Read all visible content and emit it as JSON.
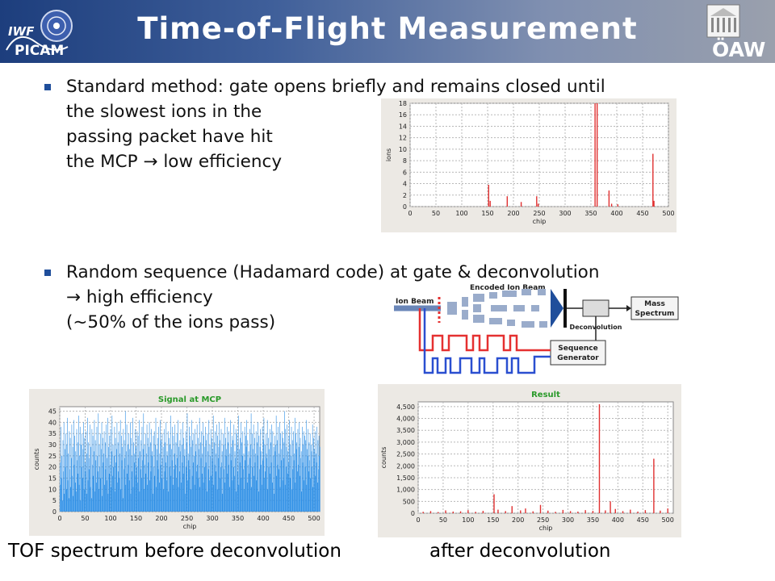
{
  "header": {
    "title": "Time-of-Flight Measurement",
    "logo_left_line1": "IWF",
    "logo_left_line2": "PICAM",
    "logo_right_text": "ÖAW",
    "colors": {
      "header_start": "#1d3e7d",
      "header_end": "#9aa0ad",
      "bullet": "#1f4e9b"
    }
  },
  "bullets": [
    {
      "lines": [
        "Standard method: gate opens briefly and remains closed until",
        "the slowest ions in the",
        "passing packet have hit",
        "the MCP → low efficiency"
      ]
    },
    {
      "lines": [
        "Random sequence (Hadamard code) at gate & deconvolution",
        "→ high efficiency",
        "(~50% of the ions pass)"
      ]
    }
  ],
  "diagram": {
    "ion_beam": "Ion Beam",
    "encoded_ion_beam": "Encoded Ion Beam",
    "mass_spectrum_line1": "Mass",
    "mass_spectrum_line2": "Spectrum",
    "deconvolution": "Deconvolution",
    "sequence_generator_line1": "Sequence",
    "sequence_generator_line2": "Generator"
  },
  "captions": {
    "left": "TOF spectrum before deconvolution",
    "right": "after deconvolution"
  },
  "chart_data": [
    {
      "type": "bar",
      "title": "",
      "xlabel": "chip",
      "ylabel": "ions",
      "xlim": [
        0,
        500
      ],
      "ylim": [
        0,
        18
      ],
      "xticks": [
        0,
        50,
        100,
        150,
        200,
        250,
        300,
        350,
        400,
        450,
        500
      ],
      "yticks": [
        0,
        2,
        4,
        6,
        8,
        10,
        12,
        14,
        16,
        18
      ],
      "x": [
        152,
        155,
        188,
        215,
        245,
        248,
        358,
        362,
        385,
        390,
        402,
        470,
        472
      ],
      "values": [
        3.8,
        1.0,
        1.8,
        0.8,
        1.8,
        0.5,
        18,
        18,
        2.8,
        0.5,
        0.4,
        9.2,
        1.0
      ],
      "color": "#e03030"
    },
    {
      "type": "bar",
      "title": "Signal at MCP",
      "xlabel": "chip",
      "ylabel": "counts",
      "xlim": [
        0,
        511
      ],
      "ylim": [
        0,
        47
      ],
      "xticks": [
        0,
        50,
        100,
        150,
        200,
        250,
        300,
        350,
        400,
        450,
        500
      ],
      "yticks": [
        0,
        5,
        10,
        15,
        20,
        25,
        30,
        35,
        40,
        45
      ],
      "color": "#2d8fe6",
      "values": [
        22,
        12,
        38,
        15,
        25,
        5,
        32,
        18,
        40,
        8,
        28,
        20,
        35,
        10,
        30,
        42,
        14,
        26,
        6,
        36,
        19,
        33,
        11,
        24,
        39,
        16,
        29,
        7,
        41,
        21,
        34,
        13,
        27,
        9,
        37,
        23,
        31,
        17,
        43,
        12,
        25,
        38,
        5,
        30,
        20,
        35,
        15,
        28,
        40,
        10,
        33,
        22,
        18,
        36,
        8,
        26,
        42,
        14,
        31,
        19,
        24,
        39,
        11,
        29,
        6,
        37,
        21,
        34,
        16,
        27,
        41,
        9,
        32,
        23,
        13,
        38,
        25,
        18,
        44,
        10,
        30,
        20,
        35,
        15,
        28,
        40,
        7,
        33,
        22,
        26,
        36,
        12,
        31,
        19,
        39,
        14,
        24,
        42,
        8,
        29,
        17,
        34,
        21,
        37,
        11,
        27,
        43,
        16,
        30,
        20,
        25,
        38,
        9,
        33,
        22,
        28,
        40,
        13,
        31,
        18,
        36,
        15,
        26,
        41,
        10,
        34,
        23,
        29,
        6,
        37,
        19,
        32,
        24,
        45,
        12,
        27,
        39,
        17,
        30,
        21,
        35,
        14,
        28,
        40,
        8,
        33,
        25,
        18,
        42,
        11,
        31,
        22,
        26,
        37,
        16,
        29,
        20,
        36,
        13,
        34,
        24,
        41,
        9,
        27,
        19,
        32,
        15,
        38,
        23,
        28,
        44,
        10,
        30,
        21,
        35,
        17,
        26,
        39,
        12,
        33,
        22,
        29,
        40,
        14,
        31,
        18,
        37,
        25,
        27,
        8,
        34,
        20,
        36,
        16,
        30,
        42,
        11,
        28,
        23,
        33,
        19,
        38,
        13,
        26,
        41,
        21,
        32,
        15,
        35,
        24,
        29,
        10,
        37,
        18,
        31,
        22,
        40,
        14,
        27,
        25,
        36,
        9,
        33,
        20,
        30,
        43,
        16,
        28,
        23,
        38,
        12,
        34,
        19,
        26,
        39,
        21,
        31,
        15,
        35,
        24,
        41,
        11,
        29,
        18,
        32,
        27,
        37,
        13,
        30,
        22,
        40,
        17,
        33,
        25,
        28,
        8,
        36,
        20,
        31,
        44,
        14,
        26,
        23,
        38,
        19,
        34,
        10,
        29,
        41,
        16,
        32,
        22,
        35,
        25,
        12,
        37,
        27,
        30,
        18,
        39,
        21,
        33,
        15,
        28,
        42,
        11,
        31,
        24,
        36,
        17,
        26,
        40,
        13,
        34,
        20,
        29,
        38,
        22,
        32,
        9,
        35,
        27,
        19,
        41,
        14,
        30,
        25,
        37,
        16,
        33,
        23,
        28,
        43,
        12,
        31,
        21,
        36,
        18,
        26,
        39,
        10,
        34,
        24,
        29,
        40,
        15,
        32,
        20,
        37,
        22,
        27,
        8,
        35,
        30,
        19,
        42,
        13,
        33,
        25,
        28,
        38,
        17,
        31,
        21,
        36,
        11,
        26,
        41,
        23,
        29,
        34,
        14,
        32,
        20,
        39,
        16,
        27,
        24,
        37,
        9,
        35,
        30,
        18,
        43,
        12,
        28,
        22,
        33,
        40,
        15,
        31,
        25,
        36,
        19,
        26,
        10,
        38,
        23,
        34,
        29,
        41,
        13,
        32,
        21,
        27,
        17,
        37,
        24,
        30,
        44,
        11,
        35,
        20,
        28,
        39,
        16,
        33,
        22,
        26,
        36,
        14,
        31,
        25,
        40,
        9,
        34,
        19,
        29,
        37,
        21,
        27,
        12,
        38,
        23,
        32,
        42,
        15,
        30,
        18,
        35,
        26,
        24,
        41,
        10,
        33,
        20,
        28,
        37,
        17,
        31,
        22,
        39,
        13,
        36,
        25,
        29,
        8,
        34,
        27,
        30,
        43,
        16,
        32,
        21,
        38,
        19,
        26,
        40,
        11,
        35,
        23,
        28,
        36,
        14,
        33,
        24,
        31,
        45,
        12,
        37,
        20,
        29,
        39,
        17,
        27,
        22,
        34,
        41,
        15,
        30,
        25,
        38,
        10,
        32,
        19,
        36,
        23,
        26,
        42,
        13,
        35,
        28,
        31,
        18,
        37,
        21,
        29,
        40,
        16,
        33,
        24,
        27,
        9,
        38,
        22,
        30,
        36,
        14,
        34,
        20,
        32,
        41,
        12,
        28,
        25,
        37,
        18,
        31,
        23,
        35,
        15,
        30,
        27,
        20,
        39,
        11,
        33,
        24,
        28,
        36,
        16,
        26,
        22,
        38,
        13,
        32,
        19,
        34,
        25,
        29
      ]
    },
    {
      "type": "bar",
      "title": "Result",
      "xlabel": "chip",
      "ylabel": "counts",
      "xlim": [
        0,
        511
      ],
      "ylim": [
        0,
        4700
      ],
      "xticks": [
        0,
        50,
        100,
        150,
        200,
        250,
        300,
        350,
        400,
        450,
        500
      ],
      "yticks": [
        0,
        500,
        1000,
        1500,
        2000,
        2500,
        3000,
        3500,
        4000,
        4500
      ],
      "ytick_labels": [
        "0",
        "500",
        "1,000",
        "1,500",
        "2,000",
        "2,500",
        "3,000",
        "3,500",
        "4,000",
        "4,500"
      ],
      "color": "#e03030",
      "x": [
        10,
        25,
        40,
        55,
        70,
        85,
        100,
        115,
        130,
        152,
        160,
        175,
        188,
        205,
        215,
        230,
        245,
        260,
        275,
        290,
        305,
        320,
        335,
        350,
        363,
        375,
        385,
        395,
        410,
        425,
        440,
        455,
        472,
        485,
        500
      ],
      "values": [
        60,
        90,
        50,
        120,
        70,
        80,
        130,
        60,
        100,
        800,
        150,
        90,
        300,
        120,
        200,
        80,
        350,
        110,
        60,
        140,
        90,
        70,
        130,
        100,
        4600,
        120,
        500,
        180,
        90,
        150,
        70,
        130,
        2300,
        110,
        200
      ]
    }
  ]
}
